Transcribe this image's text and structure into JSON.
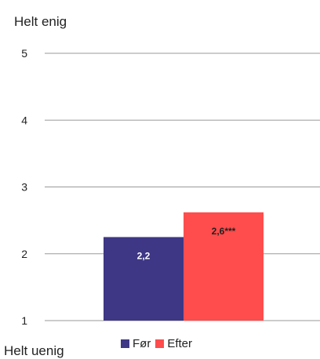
{
  "chart_data": {
    "type": "bar",
    "top_label": "Helt enig",
    "bottom_label": "Helt uenig",
    "ylim": [
      1,
      5
    ],
    "yticks": [
      "1",
      "2",
      "3",
      "4",
      "5"
    ],
    "grid": true,
    "legend_position": "bottom-center",
    "series": [
      {
        "name": "Før",
        "value": 2.25,
        "label": "2,2",
        "color": "#3e3785",
        "label_color": "#ffffff"
      },
      {
        "name": "Efter",
        "value": 2.62,
        "label": "2,6***",
        "color": "#ff4c4c",
        "label_color": "#222222"
      }
    ]
  }
}
